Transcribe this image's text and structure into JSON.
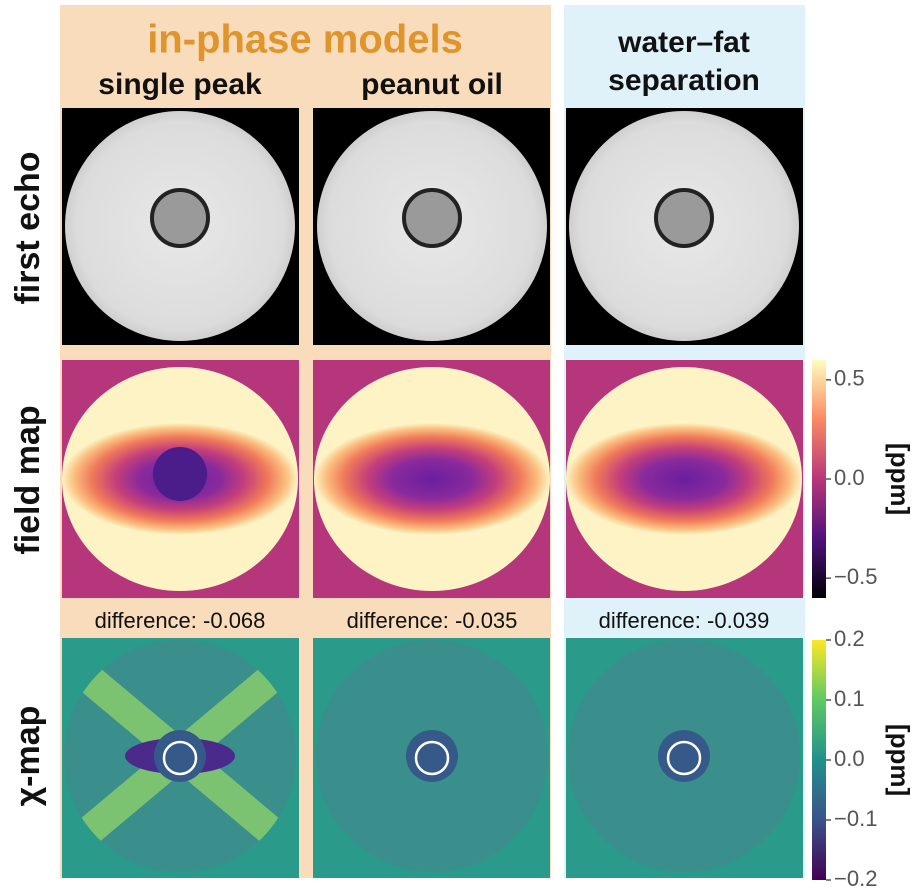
{
  "header": {
    "title": "in-phase models",
    "columns": [
      "single peak",
      "peanut oil",
      "water–fat",
      "separation"
    ]
  },
  "rows": [
    "first echo",
    "field map",
    "χ-map"
  ],
  "differences": [
    "difference: -0.068",
    "difference: -0.035",
    "difference: -0.039"
  ],
  "colorbars": [
    {
      "label": "[ppm]",
      "range": [
        -0.6,
        0.6
      ],
      "ticks": [
        {
          "value": -0.5,
          "label": "−0.5"
        },
        {
          "value": 0,
          "label": "0.0"
        },
        0.5
      ]
    },
    {
      "label": "[ppm]",
      "range": [
        -0.2,
        0.2
      ],
      "ticks": [
        {
          "value": -0.2,
          "label": "−0.2"
        },
        {
          "value": -0.1,
          "label": "−0.1"
        },
        {
          "value": 0,
          "label": "0.0"
        },
        0.1,
        0.2
      ]
    }
  ]
}
